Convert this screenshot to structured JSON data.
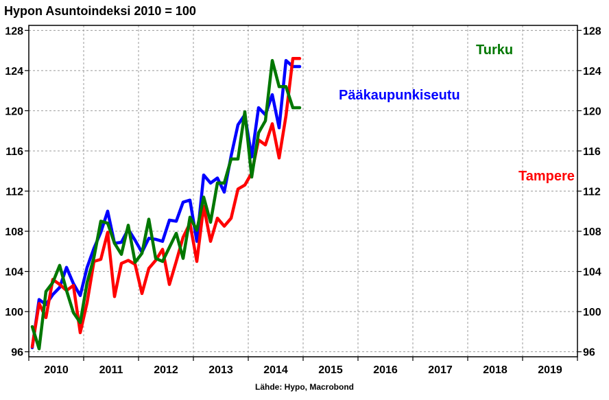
{
  "title": "Hypon Asuntoindeksi 2010 = 100",
  "source": "Lähde: Hypo, Macrobond",
  "chart_data": {
    "type": "line",
    "title": "Hypon Asuntoindeksi 2010 = 100",
    "xlabel": "",
    "ylabel": "",
    "ylim": [
      95.5,
      128.5
    ],
    "yticks": [
      96,
      100,
      104,
      108,
      112,
      116,
      120,
      124,
      128
    ],
    "xlim": [
      0,
      40
    ],
    "years": [
      "2010",
      "2011",
      "2012",
      "2013",
      "2014",
      "2015",
      "2016",
      "2017",
      "2018",
      "2019"
    ],
    "grid": true,
    "x": [
      0.25,
      0.75,
      1.25,
      1.75,
      2.25,
      2.75,
      3.25,
      3.75,
      4.25,
      4.75,
      5.25,
      5.75,
      6.25,
      6.75,
      7.25,
      7.75,
      8.25,
      8.75,
      9.25,
      9.75,
      10.25,
      10.75,
      11.25,
      11.75,
      12.25,
      12.75,
      13.25,
      13.75,
      14.25,
      14.75,
      15.25,
      15.75,
      16.25,
      16.75,
      17.25,
      17.75,
      18.25,
      18.75,
      19.25,
      19.75
    ],
    "series": [
      {
        "name": "Pääkaupunkiseutu",
        "color": "#0000ff",
        "values": [
          96.4,
          101.2,
          100.7,
          101.7,
          102.4,
          104.4,
          102.8,
          101.6,
          104.4,
          106.3,
          107.9,
          110.0,
          106.8,
          106.9,
          108.2,
          107.1,
          105.9,
          107.3,
          107.2,
          107.0,
          109.1,
          109.0,
          110.9,
          111.1,
          107.0,
          113.6,
          112.8,
          113.3,
          111.9,
          115.5,
          118.6,
          119.6,
          115.4,
          120.3,
          119.6,
          121.6,
          118.3,
          125.0,
          124.4,
          124.4
        ]
      },
      {
        "name": "Tampere",
        "color": "#ff0000",
        "values": [
          96.5,
          100.8,
          99.4,
          103.2,
          102.7,
          102.1,
          102.6,
          97.9,
          100.9,
          105.0,
          105.2,
          107.9,
          101.5,
          104.8,
          105.1,
          104.7,
          101.8,
          104.3,
          105.1,
          106.2,
          102.7,
          105.0,
          107.4,
          108.8,
          105.0,
          110.5,
          107.0,
          109.3,
          108.5,
          109.3,
          112.2,
          112.6,
          113.8,
          117.1,
          116.6,
          118.7,
          115.3,
          119.5,
          125.2,
          125.2
        ]
      },
      {
        "name": "Turku",
        "color": "#007700",
        "values": [
          98.5,
          96.3,
          102.0,
          102.9,
          104.6,
          102.1,
          99.9,
          98.9,
          102.9,
          105.4,
          109.0,
          108.8,
          106.8,
          105.7,
          108.6,
          104.9,
          105.8,
          109.2,
          105.3,
          105.0,
          106.4,
          107.8,
          105.3,
          109.4,
          108.1,
          111.4,
          108.9,
          112.8,
          112.8,
          115.2,
          115.2,
          119.9,
          113.4,
          117.8,
          119.0,
          125.0,
          122.4,
          122.4,
          120.3,
          120.3
        ]
      }
    ]
  },
  "labels": {
    "turku": "Turku",
    "paakaupunkiseutu": "Pääkaupunkiseutu",
    "tampere": "Tampere"
  }
}
